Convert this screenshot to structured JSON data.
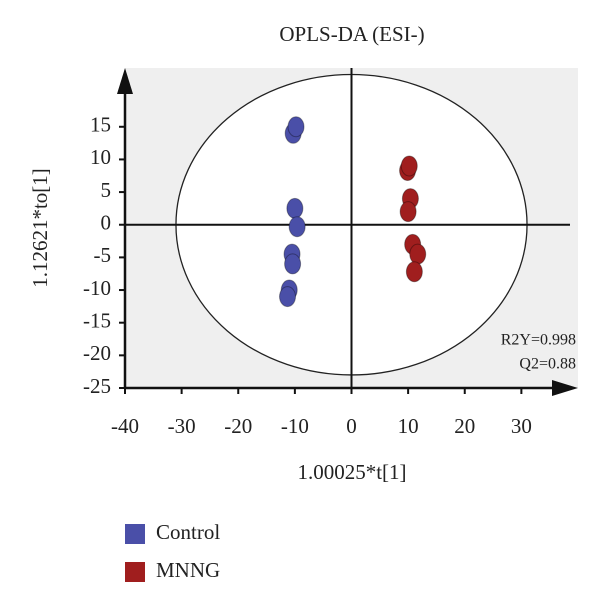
{
  "chart_data": {
    "type": "scatter",
    "title": "OPLS-DA (ESI-)",
    "x_label": "1.00025*t[1]",
    "y_label": "1.12621*to[1]",
    "xlim": [
      -40,
      40
    ],
    "ylim": [
      -25,
      24
    ],
    "xticks": [
      -40,
      -30,
      -20,
      -10,
      0,
      10,
      20,
      30
    ],
    "yticks": [
      -25,
      -20,
      -15,
      -10,
      -5,
      0,
      5,
      10,
      15
    ],
    "ellipse": {
      "rx": 31,
      "ry": 23
    },
    "annotations": [
      "R2Y=0.998",
      "Q2=0.88"
    ],
    "series": [
      {
        "name": "Control",
        "color": "#4a4fa8",
        "x": [
          -10.3,
          -9.8,
          -10,
          -9.6,
          -10.5,
          -10.4,
          -11,
          -11.3
        ],
        "values": [
          14,
          15,
          2.5,
          -0.3,
          -4.5,
          -6,
          -10,
          -11
        ]
      },
      {
        "name": "MNNG",
        "color": "#a01e1e",
        "x": [
          9.9,
          10.2,
          10.4,
          10,
          10.8,
          11.7,
          11.1
        ],
        "values": [
          8.3,
          9,
          4,
          2,
          -3,
          -4.5,
          -7.2
        ]
      }
    ]
  }
}
